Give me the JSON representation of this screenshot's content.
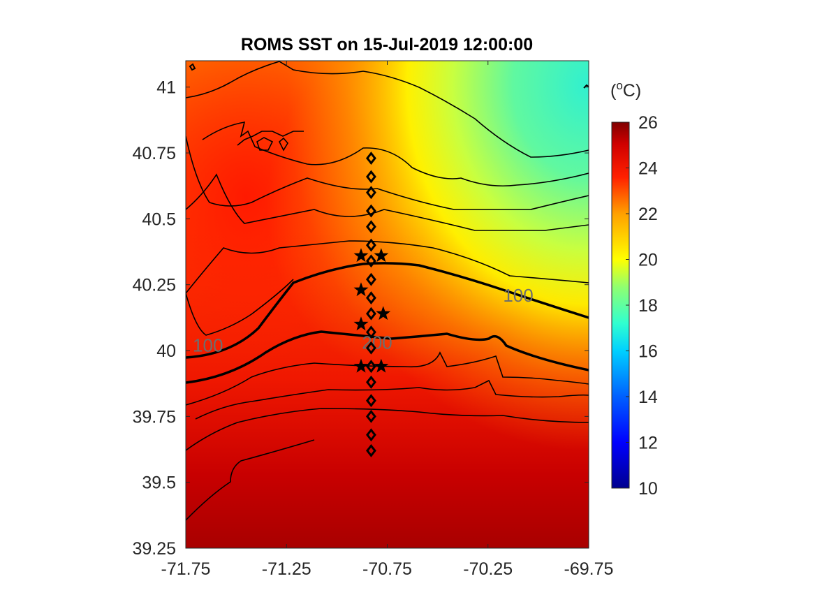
{
  "chart_data": {
    "type": "heatmap",
    "title": "ROMS SST on 15-Jul-2019 12:00:00",
    "xlabel": "",
    "ylabel": "",
    "xlim": [
      -71.75,
      -69.75
    ],
    "ylim": [
      39.25,
      41.1
    ],
    "x_ticks": [
      "-71.75",
      "-71.25",
      "-70.75",
      "-70.25",
      "-69.75"
    ],
    "x_tick_values": [
      -71.75,
      -71.25,
      -70.75,
      -70.25,
      -69.75
    ],
    "y_ticks": [
      "39.25",
      "39.5",
      "39.75",
      "40",
      "40.25",
      "40.5",
      "40.75",
      "41"
    ],
    "y_tick_values": [
      39.25,
      39.5,
      39.75,
      40.0,
      40.25,
      40.5,
      40.75,
      41.0
    ],
    "colorbar": {
      "unit_label_base": "(",
      "unit_label_sup": "o",
      "unit_label_end": "C)",
      "clim": [
        10,
        26
      ],
      "ticks": [
        "26",
        "24",
        "22",
        "20",
        "18",
        "16",
        "14",
        "12",
        "10"
      ],
      "tick_values": [
        26,
        24,
        22,
        20,
        18,
        16,
        14,
        12,
        10
      ],
      "colormap": "jet"
    },
    "contour_labels": [
      {
        "text": "100",
        "lon": -71.64,
        "lat": 40.02
      },
      {
        "text": "100",
        "lon": -70.1,
        "lat": 40.21
      },
      {
        "text": "200",
        "lon": -70.8,
        "lat": 40.03
      }
    ],
    "transect_diamonds": {
      "lon": -70.83,
      "lat": [
        40.73,
        40.66,
        40.6,
        40.53,
        40.47,
        40.4,
        40.34,
        40.27,
        40.2,
        40.14,
        40.07,
        40.01,
        39.94,
        39.88,
        39.81,
        39.75,
        39.68,
        39.62
      ]
    },
    "stars": [
      {
        "lon": -70.88,
        "lat": 40.36
      },
      {
        "lon": -70.78,
        "lat": 40.36
      },
      {
        "lon": -70.88,
        "lat": 40.23
      },
      {
        "lon": -70.77,
        "lat": 40.14
      },
      {
        "lon": -70.88,
        "lat": 40.1
      },
      {
        "lon": -70.88,
        "lat": 39.94
      },
      {
        "lon": -70.78,
        "lat": 39.94
      }
    ],
    "colors": {
      "colormap_stops": [
        "#00008f",
        "#0000ff",
        "#0080ff",
        "#00ffff",
        "#80ff80",
        "#ffff00",
        "#ff8000",
        "#ff0000",
        "#800000"
      ]
    }
  }
}
